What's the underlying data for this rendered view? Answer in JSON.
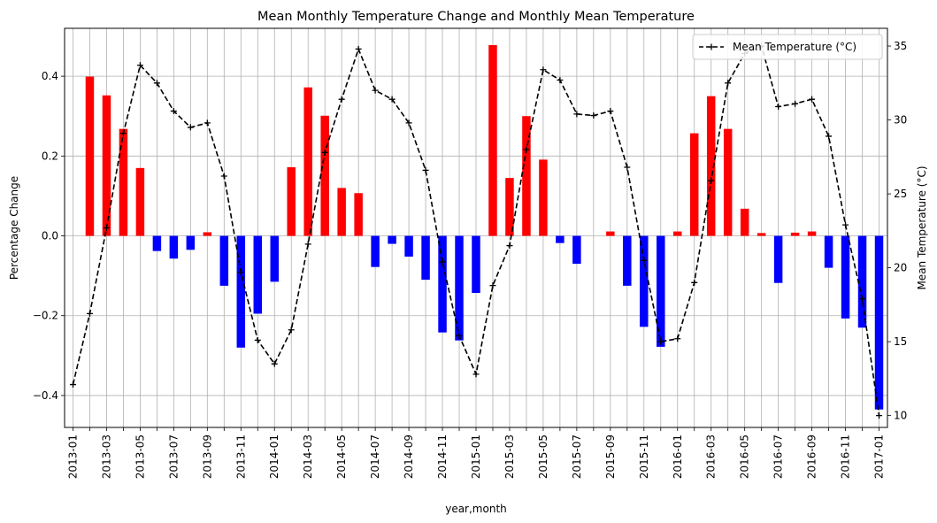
{
  "chart_data": {
    "type": "bar+line",
    "title": "Mean Monthly Temperature Change and Monthly Mean Temperature",
    "xlabel": "year,month",
    "ylabel_left": "Percentage Change",
    "ylabel_right": "Mean Temperature (°C)",
    "ylim_left": [
      -0.48,
      0.52
    ],
    "ylim_right": [
      9.2,
      36.2
    ],
    "yticks_left": [
      "−0.4",
      "−0.2",
      "0.0",
      "0.2",
      "0.4"
    ],
    "yticks_left_values": [
      -0.4,
      -0.2,
      0.0,
      0.2,
      0.4
    ],
    "yticks_right": [
      "10",
      "15",
      "20",
      "25",
      "30",
      "35"
    ],
    "yticks_right_values": [
      10,
      15,
      20,
      25,
      30,
      35
    ],
    "grid": true,
    "legend_position": "top-right",
    "positive_color": "#ff0000",
    "negative_color": "#0000ff",
    "line_color": "#000000",
    "categories": [
      "2013-01",
      "2013-02",
      "2013-03",
      "2013-04",
      "2013-05",
      "2013-06",
      "2013-07",
      "2013-08",
      "2013-09",
      "2013-10",
      "2013-11",
      "2013-12",
      "2014-01",
      "2014-02",
      "2014-03",
      "2014-04",
      "2014-05",
      "2014-06",
      "2014-07",
      "2014-08",
      "2014-09",
      "2014-10",
      "2014-11",
      "2014-12",
      "2015-01",
      "2015-02",
      "2015-03",
      "2015-04",
      "2015-05",
      "2015-06",
      "2015-07",
      "2015-08",
      "2015-09",
      "2015-10",
      "2015-11",
      "2015-12",
      "2016-01",
      "2016-02",
      "2016-03",
      "2016-04",
      "2016-05",
      "2016-06",
      "2016-07",
      "2016-08",
      "2016-09",
      "2016-10",
      "2016-11",
      "2016-12",
      "2017-01"
    ],
    "tick_labels": [
      "2013-01",
      "2013-03",
      "2013-05",
      "2013-07",
      "2013-09",
      "2013-11",
      "2014-01",
      "2014-03",
      "2014-05",
      "2014-07",
      "2014-09",
      "2014-11",
      "2015-01",
      "2015-03",
      "2015-05",
      "2015-07",
      "2015-09",
      "2015-11",
      "2016-01",
      "2016-03",
      "2016-05",
      "2016-07",
      "2016-09",
      "2016-11",
      "2017-01"
    ],
    "series": [
      {
        "kind": "bar",
        "values": [
          0,
          0.399,
          0.352,
          0.268,
          0.17,
          -0.038,
          -0.057,
          -0.035,
          0.009,
          -0.125,
          -0.28,
          -0.195,
          -0.115,
          0.172,
          0.372,
          0.301,
          0.12,
          0.107,
          -0.078,
          -0.02,
          -0.052,
          -0.11,
          -0.242,
          -0.262,
          -0.143,
          0.478,
          0.145,
          0.3,
          0.191,
          -0.018,
          -0.07,
          0,
          0.011,
          -0.125,
          -0.228,
          -0.278,
          0.011,
          0.257,
          0.35,
          0.268,
          0.068,
          0.007,
          -0.118,
          0.008,
          0.011,
          -0.08,
          -0.207,
          -0.23,
          -0.435
        ]
      },
      {
        "kind": "line",
        "name": "Mean Temperature (°C)",
        "values": [
          12.1,
          16.9,
          22.7,
          29.1,
          33.7,
          32.5,
          30.6,
          29.5,
          29.8,
          26.2,
          19.7,
          15.1,
          13.5,
          15.8,
          21.6,
          27.8,
          31.4,
          34.8,
          32.0,
          31.4,
          29.8,
          26.6,
          20.4,
          15.4,
          12.8,
          18.8,
          21.5,
          28.0,
          33.4,
          32.7,
          30.4,
          30.3,
          30.6,
          26.8,
          20.5,
          15.0,
          15.2,
          19.0,
          25.9,
          32.5,
          34.5,
          35.0,
          30.9,
          31.1,
          31.4,
          28.9,
          22.9,
          17.9,
          10.0
        ]
      }
    ]
  }
}
